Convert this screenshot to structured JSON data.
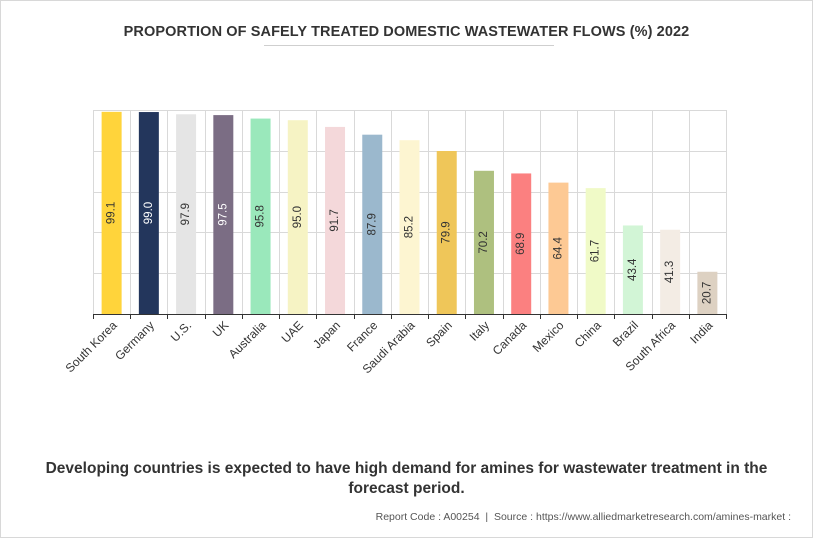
{
  "chart_data": {
    "type": "bar",
    "title": "PROPORTION OF SAFELY TREATED DOMESTIC WASTEWATER FLOWS (%) 2022",
    "xlabel": "",
    "ylabel": "",
    "ylim": [
      0,
      100
    ],
    "grid": true,
    "categories": [
      "South Korea",
      "Germany",
      "U.S.",
      "UK",
      "Australia",
      "UAE",
      "Japan",
      "France",
      "Saudi Arabia",
      "Spain",
      "Italy",
      "Canada",
      "Mexico",
      "China",
      "Brazil",
      "South Africa",
      "India"
    ],
    "values": [
      99.1,
      99.0,
      97.9,
      97.5,
      95.8,
      95.0,
      91.7,
      87.9,
      85.2,
      79.9,
      70.2,
      68.9,
      64.4,
      61.7,
      43.4,
      41.3,
      20.7
    ],
    "data_labels": [
      "99.1",
      "99.0",
      "97.9",
      "97.5",
      "95.8",
      "95.0",
      "91.7",
      "87.9",
      "85.2",
      "79.9",
      "70.2",
      "68.9",
      "64.4",
      "61.7",
      "43.4",
      "41.3",
      "20.7"
    ],
    "colors": [
      "#ffd43b",
      "#23365c",
      "#e5e5e5",
      "#7b6d84",
      "#9ae8bb",
      "#f6f3c4",
      "#f4d8da",
      "#9bb8cd",
      "#fdf5d1",
      "#efc659",
      "#aec07f",
      "#fb8080",
      "#fdc994",
      "#f0fac7",
      "#d2f5d6",
      "#f3ece4",
      "#ddd1c2"
    ],
    "label_colors": [
      "#333333",
      "#ffffff",
      "#333333",
      "#ffffff",
      "#333333",
      "#333333",
      "#333333",
      "#333333",
      "#333333",
      "#333333",
      "#333333",
      "#333333",
      "#333333",
      "#333333",
      "#333333",
      "#333333",
      "#333333"
    ]
  },
  "caption": "Developing countries is expected to have high demand for amines for wastewater treatment in the forecast period.",
  "footer": {
    "report_code": "Report Code : A00254",
    "separator": "|",
    "source": "Source : https://www.alliedmarketresearch.com/amines-market :"
  }
}
